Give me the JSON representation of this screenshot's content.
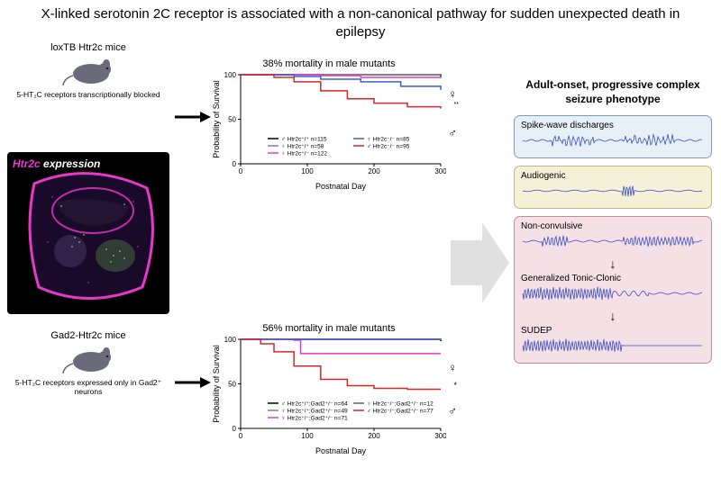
{
  "title": "X-linked serotonin 2C receptor is associated with a non-canonical pathway for sudden unexpected death in epilepsy",
  "models": {
    "m1": {
      "label": "loxTB Htr2c mice",
      "desc": "5-HT₂C receptors transcriptionally blocked"
    },
    "m2": {
      "label": "Gad2-Htr2c mice",
      "desc": "5-HT₂C receptors expressed only in Gad2⁺ neurons"
    }
  },
  "brain": {
    "label": "Htr2c",
    "label2": " expression",
    "label_color": "#e838c8",
    "bg_color": "#000000"
  },
  "charts": {
    "c1": {
      "title": "38% mortality in male mutants",
      "ylabel": "Probability of Survival",
      "xlabel": "Postnatal Day",
      "xlim": [
        0,
        300
      ],
      "ylim": [
        0,
        100
      ],
      "xticks": [
        0,
        100,
        200,
        300
      ],
      "yticks": [
        0,
        50,
        100
      ],
      "series": [
        {
          "color": "#000000",
          "label": "♂ Htr2c⁺/⁺ n=115",
          "data": [
            [
              0,
              100
            ],
            [
              300,
              98
            ]
          ]
        },
        {
          "color": "#808080",
          "label": "♀ Htr2c⁺/⁺ n=58",
          "data": [
            [
              0,
              100
            ],
            [
              300,
              99
            ]
          ]
        },
        {
          "color": "#e838c8",
          "label": "♀ Htr2c⁺/⁻ n=122",
          "data": [
            [
              0,
              100
            ],
            [
              120,
              99
            ],
            [
              180,
              97
            ],
            [
              300,
              96
            ]
          ]
        },
        {
          "color": "#3a5fcd",
          "label": "♀ Htr2c⁻/⁻ n=85",
          "data": [
            [
              0,
              100
            ],
            [
              80,
              98
            ],
            [
              120,
              95
            ],
            [
              180,
              92
            ],
            [
              240,
              87
            ],
            [
              300,
              83
            ]
          ]
        },
        {
          "color": "#d62728",
          "label": "♂ Htr2c⁻/⁻ n=95",
          "data": [
            [
              0,
              100
            ],
            [
              50,
              97
            ],
            [
              80,
              92
            ],
            [
              120,
              82
            ],
            [
              160,
              73
            ],
            [
              200,
              68
            ],
            [
              250,
              64
            ],
            [
              300,
              62
            ]
          ]
        }
      ]
    },
    "c2": {
      "title": "56% mortality in male mutants",
      "ylabel": "Probability of Survival",
      "xlabel": "Postnatal Day",
      "xlim": [
        0,
        300
      ],
      "ylim": [
        0,
        100
      ],
      "xticks": [
        0,
        100,
        200,
        300
      ],
      "yticks": [
        0,
        50,
        100
      ],
      "series": [
        {
          "color": "#000000",
          "label": "♂ Htr2c⁺/⁺;Gad2⁺/⁻ n=64",
          "data": [
            [
              0,
              100
            ],
            [
              300,
              98
            ]
          ]
        },
        {
          "color": "#808080",
          "label": "♀ Htr2c⁺/⁺;Gad2⁺/⁻ n=49",
          "data": [
            [
              0,
              100
            ],
            [
              300,
              99
            ]
          ]
        },
        {
          "color": "#e838c8",
          "label": "♀ Htr2c⁺/⁻;Gad2⁺/⁻ n=71",
          "data": [
            [
              0,
              100
            ],
            [
              80,
              99
            ],
            [
              90,
              84
            ],
            [
              300,
              84
            ]
          ]
        },
        {
          "color": "#3a5fcd",
          "label": "♀ Htr2c⁻/⁻;Gad2⁺/⁻ n=12",
          "data": [
            [
              0,
              100
            ],
            [
              300,
              100
            ]
          ]
        },
        {
          "color": "#d62728",
          "label": "♂ Htr2c⁻/⁻;Gad2⁺/⁻ n=77",
          "data": [
            [
              0,
              100
            ],
            [
              30,
              95
            ],
            [
              50,
              86
            ],
            [
              80,
              70
            ],
            [
              120,
              55
            ],
            [
              160,
              48
            ],
            [
              200,
              45
            ],
            [
              250,
              44
            ],
            [
              300,
              44
            ]
          ]
        }
      ]
    }
  },
  "right": {
    "title": "Adult-onset, progressive complex seizure phenotype",
    "boxes": [
      {
        "label": "Spike-wave discharges",
        "bg": "#e8f0f7",
        "border": "#7a9bc4",
        "wave": "spikewave"
      },
      {
        "label": "Audiogenic",
        "bg": "#f5f0d8",
        "border": "#c4b878",
        "wave": "sparse"
      }
    ],
    "mainbox": {
      "bg": "#f5e0e6",
      "border": "#c488a0",
      "items": [
        {
          "label": "Non-convulsive",
          "wave": "nonconv"
        },
        {
          "label": "Generalized Tonic-Clonic",
          "wave": "gtc"
        },
        {
          "label": "SUDEP",
          "wave": "sudep"
        }
      ]
    }
  },
  "colors": {
    "waveform": "#3a4fc4",
    "mouse": "#6a6a7a"
  }
}
